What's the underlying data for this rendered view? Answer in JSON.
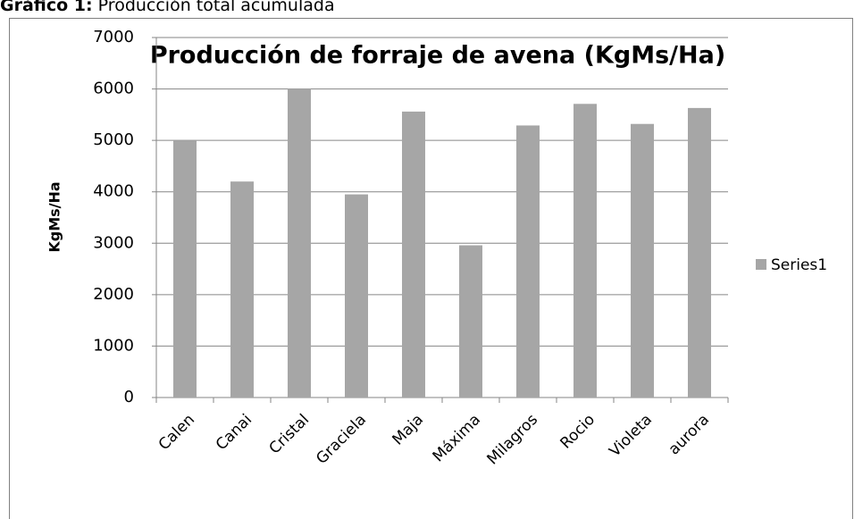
{
  "caption": {
    "label": "Gráfico 1:",
    "text": "Producción total acumulada"
  },
  "chart_data": {
    "type": "bar",
    "title": "Producción de forraje de avena (KgMs/Ha)",
    "y_label": "KgMs/Ha",
    "categories": [
      "Calen",
      "Canai",
      "Cristal",
      "Graciela",
      "Maja",
      "Máxima",
      "Milagros",
      "Rocio",
      "Violeta",
      "aurora"
    ],
    "series": [
      {
        "name": "Series1",
        "color": "#a6a6a6",
        "values": [
          5000,
          4200,
          6000,
          3950,
          5560,
          2960,
          5290,
          5710,
          5320,
          5630
        ]
      }
    ],
    "ylim": [
      0,
      7000
    ],
    "yticks": [
      0,
      1000,
      2000,
      3000,
      4000,
      5000,
      6000,
      7000
    ],
    "grid": true,
    "legend": "right"
  }
}
